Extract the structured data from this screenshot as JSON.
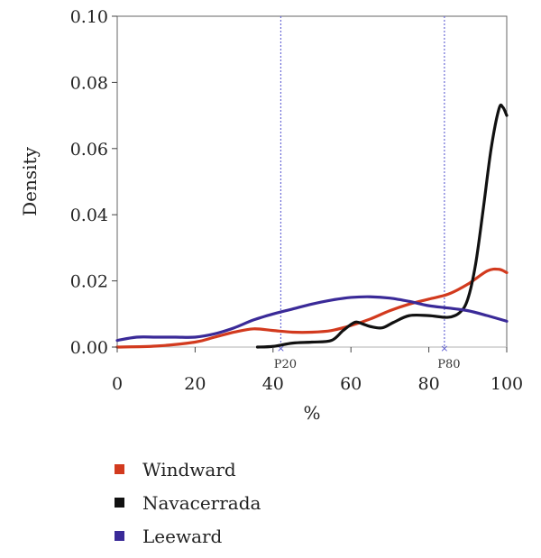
{
  "chart_data": {
    "type": "line",
    "title": "",
    "xlabel": "%",
    "ylabel": "Density",
    "xlim": [
      0,
      100
    ],
    "ylim": [
      0,
      0.1
    ],
    "x_ticks": [
      "0",
      "20",
      "40",
      "60",
      "80",
      "100"
    ],
    "y_ticks": [
      "0.00",
      "0.02",
      "0.04",
      "0.06",
      "0.08",
      "0.10"
    ],
    "grid": false,
    "legend_position": "bottom",
    "reference_lines": [
      {
        "label": "P20",
        "x": 42
      },
      {
        "label": "P80",
        "x": 84
      }
    ],
    "series": [
      {
        "name": "Windward",
        "color": "#d23a1e",
        "x": [
          0,
          10,
          20,
          25,
          30,
          35,
          40,
          45,
          50,
          55,
          60,
          65,
          70,
          75,
          80,
          85,
          90,
          95,
          98,
          100
        ],
        "y": [
          0.0,
          0.0003,
          0.0015,
          0.003,
          0.0045,
          0.0055,
          0.005,
          0.0045,
          0.0045,
          0.005,
          0.0065,
          0.0085,
          0.011,
          0.013,
          0.0145,
          0.016,
          0.019,
          0.023,
          0.0235,
          0.0225
        ]
      },
      {
        "name": "Navacerrada",
        "color": "#111111",
        "x": [
          36,
          40,
          45,
          50,
          55,
          58,
          61,
          63,
          65,
          68,
          71,
          75,
          80,
          85,
          88,
          90,
          92,
          94,
          96,
          98,
          99,
          100
        ],
        "y": [
          0.0,
          0.0002,
          0.0012,
          0.0015,
          0.002,
          0.005,
          0.0075,
          0.007,
          0.0062,
          0.0058,
          0.0075,
          0.0095,
          0.0095,
          0.009,
          0.0105,
          0.0145,
          0.025,
          0.042,
          0.06,
          0.072,
          0.0725,
          0.07
        ]
      },
      {
        "name": "Leeward",
        "color": "#3a2a98",
        "x": [
          0,
          5,
          10,
          15,
          20,
          25,
          30,
          35,
          40,
          45,
          50,
          55,
          60,
          65,
          70,
          75,
          80,
          85,
          90,
          95,
          100
        ],
        "y": [
          0.002,
          0.003,
          0.003,
          0.003,
          0.003,
          0.004,
          0.0058,
          0.0082,
          0.01,
          0.0115,
          0.013,
          0.0142,
          0.015,
          0.0152,
          0.0148,
          0.0138,
          0.0125,
          0.0118,
          0.011,
          0.0095,
          0.0078
        ]
      }
    ]
  }
}
